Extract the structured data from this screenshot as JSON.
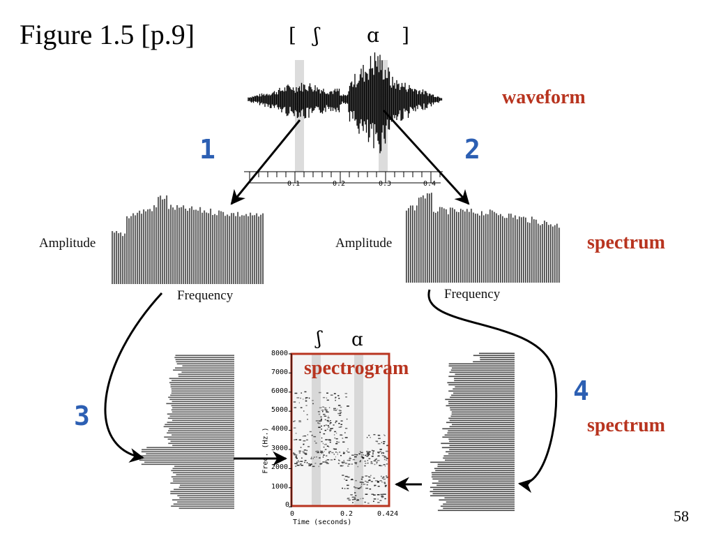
{
  "title": "Figure 1.5 [p.9]",
  "phonetics_top": {
    "open": "[",
    "sh": "ʃ",
    "a": "ɑ",
    "close": "]"
  },
  "labels": {
    "waveform": "waveform",
    "spectrum_1": "spectrum",
    "spectrum_2": "spectrum",
    "spectrogram": "spectrogram"
  },
  "steps": [
    "1",
    "2",
    "3",
    "4"
  ],
  "axes": {
    "amplitude_left": "Amplitude",
    "amplitude_right": "Amplitude",
    "frequency_left": "Frequency",
    "frequency_right": "Frequency"
  },
  "waveform_ticks": [
    "0.1",
    "0.2",
    "0.3",
    "0.4"
  ],
  "spectrogram": {
    "phonetics": {
      "sh": "ʃ",
      "a": "ɑ"
    },
    "y_ticks": [
      "8000",
      "7000",
      "6000",
      "5000",
      "4000",
      "3000",
      "2000",
      "1000",
      "0"
    ],
    "x_ticks": [
      "0",
      "0.2",
      "0.424"
    ],
    "y_label": "Freq. (Hz.)",
    "x_label": "Time (seconds)"
  },
  "page_number": "58",
  "colors": {
    "red": "#b8341f",
    "blue": "#2c5fb3"
  }
}
